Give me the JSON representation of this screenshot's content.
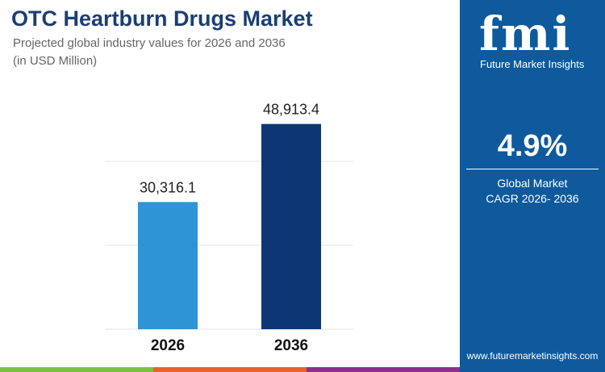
{
  "title": "OTC Heartburn Drugs Market",
  "subtitle": "Projected global industry values for 2026 and 2036",
  "unit": "(in USD Million)",
  "chart_data": {
    "type": "bar",
    "categories": [
      "2026",
      "2036"
    ],
    "values": [
      30316.1,
      48913.4
    ],
    "value_labels": [
      "30,316.1",
      "48,913.4"
    ],
    "colors": [
      "#2f94d6",
      "#0d3773"
    ],
    "ylim": [
      0,
      50000
    ],
    "grid": true,
    "title": "OTC Heartburn Drugs Market",
    "xlabel": "",
    "ylabel": "(in USD Million)"
  },
  "sidebar": {
    "logo": "fmi",
    "brand": "Future Market Insights",
    "cagr": "4.9%",
    "cagr_label1": "Global Market",
    "cagr_label2": "CAGR 2026- 2036",
    "url": "www.futuremarketinsights.com",
    "bg": "#0e5a9c"
  },
  "stripes": [
    "#7dc142",
    "#e8622a",
    "#8e2f8d"
  ]
}
